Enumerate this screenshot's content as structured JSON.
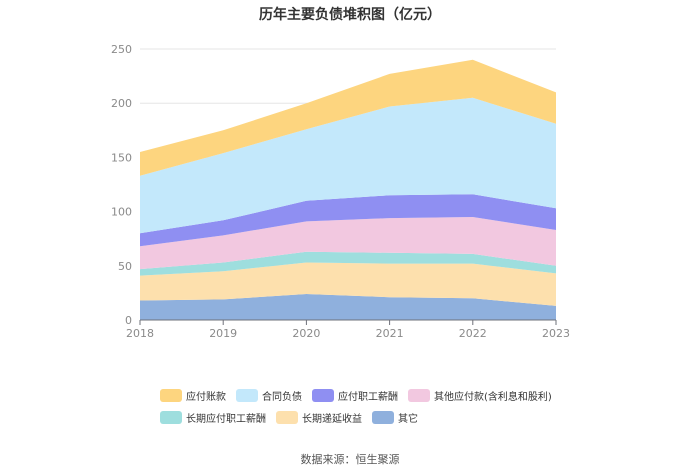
{
  "chart_data": {
    "type": "area",
    "stacked": true,
    "title": "历年主要负债堆积图（亿元）",
    "x": [
      "2018",
      "2019",
      "2020",
      "2021",
      "2022",
      "2023"
    ],
    "ylim": [
      0,
      250
    ],
    "yticks": [
      0,
      50,
      100,
      150,
      200,
      250
    ],
    "grid": true,
    "legend_position": "bottom",
    "series": [
      {
        "name": "其它",
        "color": "#8fb0dd",
        "values": [
          18,
          19,
          24,
          21,
          20,
          13
        ]
      },
      {
        "name": "长期递延收益",
        "color": "#fde0ad",
        "values": [
          23,
          26,
          29,
          31,
          32,
          30
        ]
      },
      {
        "name": "长期应付职工薪酬",
        "color": "#9edede",
        "values": [
          6,
          8,
          10,
          10,
          9,
          7
        ]
      },
      {
        "name": "其他应付款(含利息和股利)",
        "color": "#f2c8e0",
        "values": [
          21,
          25,
          28,
          32,
          34,
          33
        ]
      },
      {
        "name": "应付职工薪酬",
        "color": "#8f8ff2",
        "values": [
          12,
          14,
          19,
          21,
          21,
          20
        ]
      },
      {
        "name": "合同负债",
        "color": "#c3e8fb",
        "values": [
          53,
          62,
          66,
          82,
          89,
          78
        ]
      },
      {
        "name": "应付账款",
        "color": "#fdd57f",
        "values": [
          22,
          21,
          24,
          30,
          35,
          29
        ]
      }
    ],
    "legend_order": [
      "应付账款",
      "合同负债",
      "应付职工薪酬",
      "其他应付款(含利息和股利)",
      "长期应付职工薪酬",
      "长期递延收益",
      "其它"
    ]
  },
  "source": "数据来源：恒生聚源"
}
